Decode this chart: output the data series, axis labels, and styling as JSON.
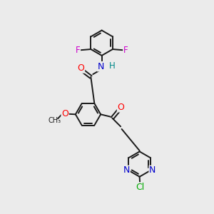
{
  "background_color": "#ebebeb",
  "bond_color": "#1a1a1a",
  "atom_colors": {
    "O": "#ff0000",
    "N": "#0000cc",
    "F": "#cc00cc",
    "Cl": "#00aa00",
    "H": "#008888",
    "C": "#1a1a1a"
  },
  "figsize": [
    3.0,
    3.0
  ],
  "dpi": 100
}
